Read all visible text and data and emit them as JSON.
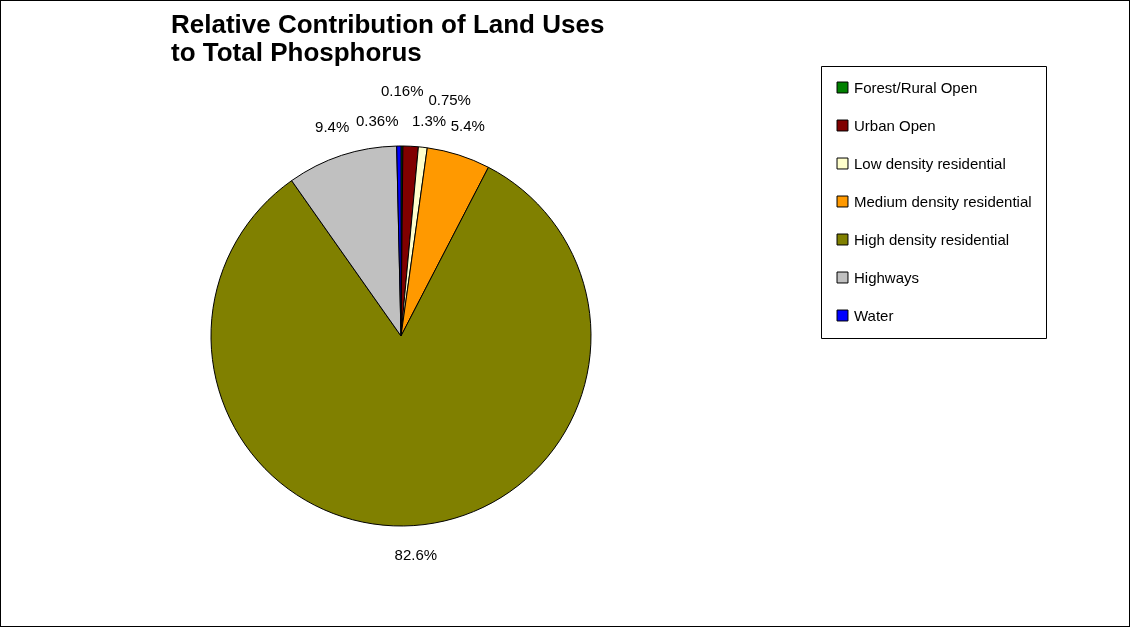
{
  "chart_data": {
    "type": "pie",
    "title": "Relative Contribution of Land Uses\nto Total Phosphorus",
    "categories": [
      "Forest/Rural Open",
      "Urban Open",
      "Low density residential",
      "Medium density residential",
      "High density residential",
      "Highways",
      "Water"
    ],
    "values": [
      0.16,
      1.3,
      0.75,
      5.4,
      82.6,
      9.4,
      0.36
    ],
    "colors": [
      "#008000",
      "#800000",
      "#ffffcc",
      "#ff9900",
      "#808000",
      "#c0c0c0",
      "#0000ff"
    ],
    "value_labels": [
      "0.16%",
      "1.3%",
      "0.75%",
      "5.4%",
      "82.6%",
      "9.4%",
      "0.36%"
    ],
    "legend": "right"
  }
}
